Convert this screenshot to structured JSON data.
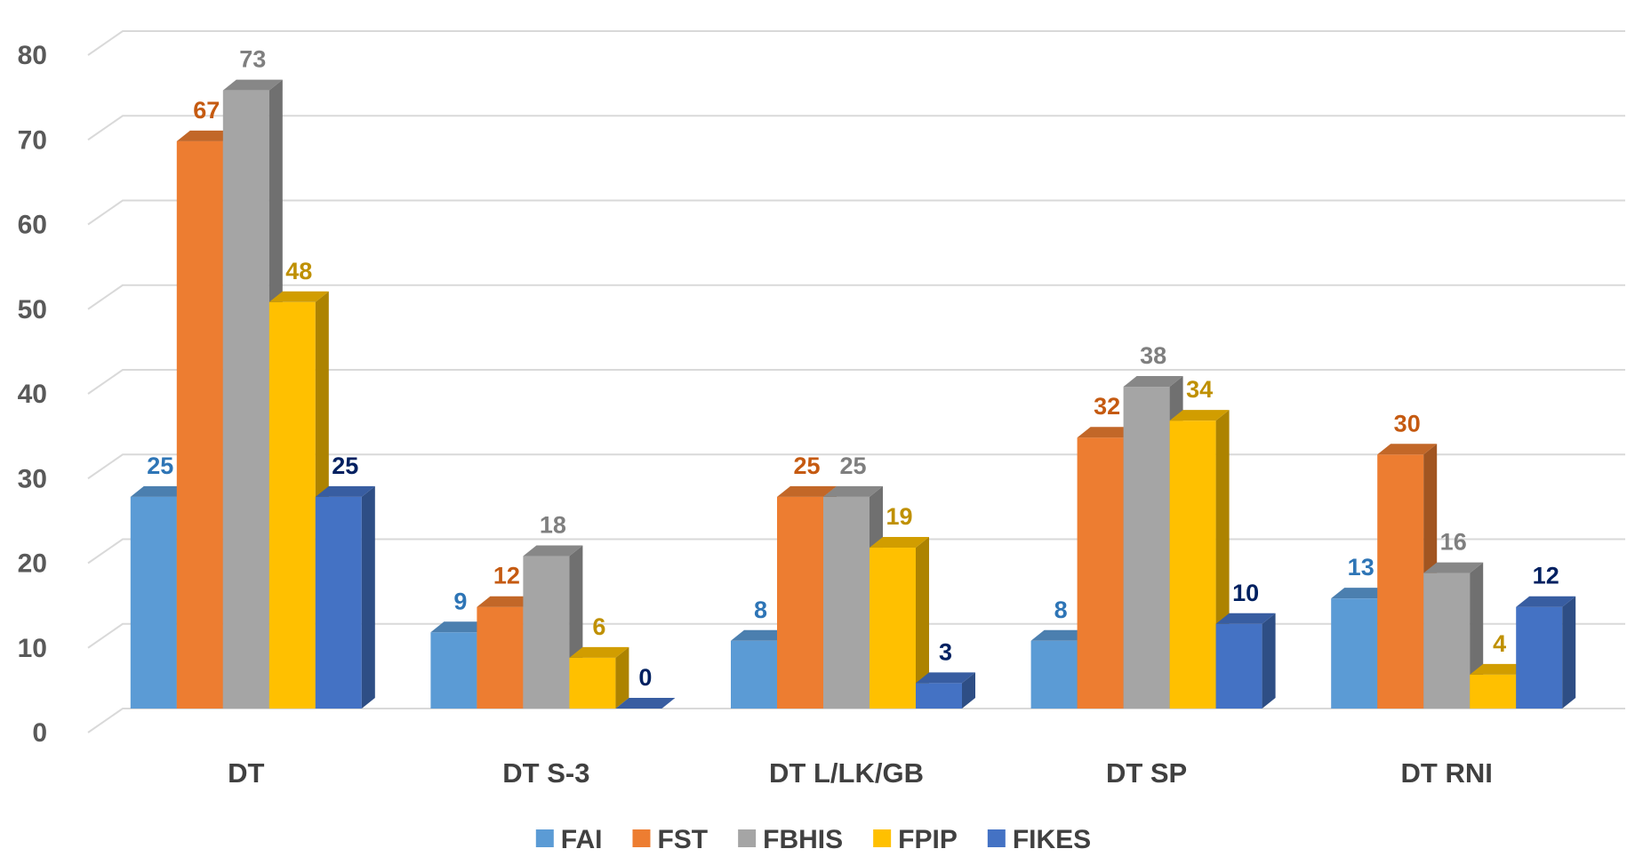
{
  "chart_data": {
    "type": "bar3d",
    "categories": [
      "DT",
      "DT S-3",
      "DT L/LK/GB",
      "DT SP",
      "DT RNI"
    ],
    "series": [
      {
        "name": "FAI",
        "color": "#5b9bd5",
        "label_color": "#2e75b6",
        "values": [
          25,
          9,
          8,
          8,
          13
        ]
      },
      {
        "name": "FST",
        "color": "#ed7d31",
        "label_color": "#c55a11",
        "values": [
          67,
          12,
          25,
          32,
          30
        ]
      },
      {
        "name": "FBHIS",
        "color": "#a5a5a5",
        "label_color": "#7f7f7f",
        "values": [
          73,
          18,
          25,
          38,
          16
        ]
      },
      {
        "name": "FPIP",
        "color": "#ffc000",
        "label_color": "#bf9000",
        "values": [
          48,
          6,
          19,
          34,
          4
        ]
      },
      {
        "name": "FIKES",
        "color": "#4472c4",
        "label_color": "#002060",
        "values": [
          25,
          0,
          3,
          10,
          12
        ]
      }
    ],
    "ylim": [
      0,
      80
    ],
    "yticks": [
      0,
      10,
      20,
      30,
      40,
      50,
      60,
      70,
      80
    ],
    "grid": true,
    "legend": "bottom"
  }
}
